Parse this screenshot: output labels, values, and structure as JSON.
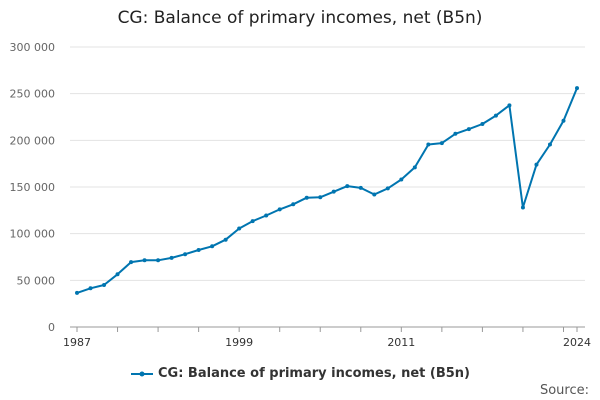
{
  "header": {
    "title": "CG: Balance of primary incomes, net (B5n)"
  },
  "legend": {
    "label": "CG: Balance of primary incomes, net (B5n)"
  },
  "footer": {
    "source_label": "Source:"
  },
  "colors": {
    "series": "#0075b0",
    "grid": "#e3e3e3",
    "axis": "#999999"
  },
  "chart_data": {
    "type": "line",
    "title": "CG: Balance of primary incomes, net (B5n)",
    "xlabel": "",
    "ylabel": "",
    "xlim": [
      1987,
      2024
    ],
    "ylim": [
      0,
      300000
    ],
    "x_ticks": [
      1987,
      1999,
      2011,
      2024
    ],
    "y_ticks": [
      0,
      50000,
      100000,
      150000,
      200000,
      250000,
      300000
    ],
    "y_tick_labels": [
      "0",
      "50 000",
      "100 000",
      "150 000",
      "200 000",
      "250 000",
      "300 000"
    ],
    "grid": "horizontal",
    "legend_position": "bottom",
    "series": [
      {
        "name": "CG: Balance of primary incomes, net (B5n)",
        "x": [
          1987,
          1988,
          1989,
          1990,
          1991,
          1992,
          1993,
          1994,
          1995,
          1996,
          1997,
          1998,
          1999,
          2000,
          2001,
          2002,
          2003,
          2004,
          2005,
          2006,
          2007,
          2008,
          2009,
          2010,
          2011,
          2012,
          2013,
          2014,
          2015,
          2016,
          2017,
          2018,
          2019,
          2020,
          2021,
          2022,
          2023,
          2024
        ],
        "values": [
          36500,
          41500,
          45000,
          56500,
          69500,
          71500,
          71500,
          74000,
          78000,
          82500,
          86500,
          93500,
          105500,
          113500,
          119500,
          126000,
          131500,
          138500,
          139000,
          145000,
          151000,
          149000,
          142000,
          148500,
          158000,
          171000,
          195500,
          197000,
          207000,
          212000,
          217500,
          226500,
          237500,
          128000,
          174000,
          195500,
          221000,
          256000
        ]
      }
    ]
  }
}
